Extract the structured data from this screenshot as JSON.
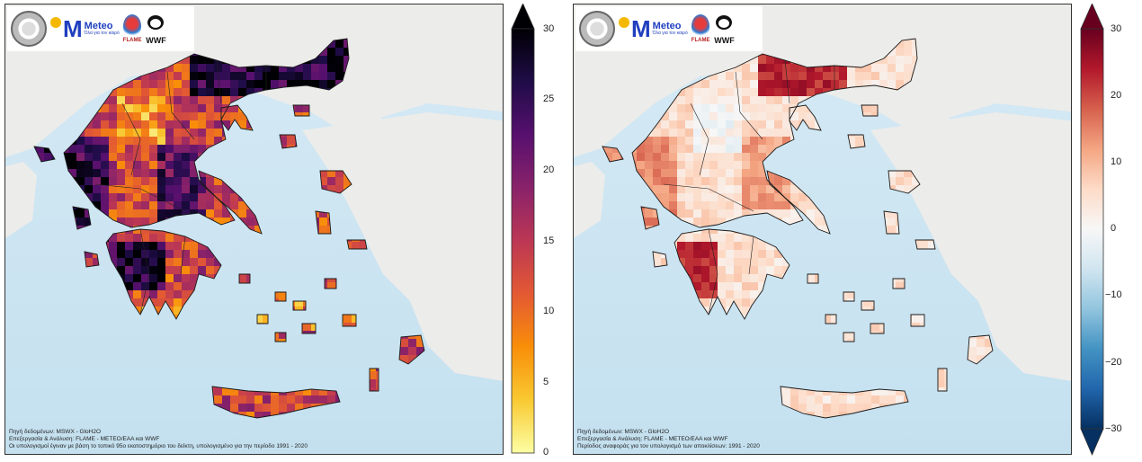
{
  "maps": [
    {
      "id": "left",
      "logos": {
        "meteo_name": "Meteo",
        "meteo_sub": "Όλα για τον καιρό",
        "flame_label": "FLAME",
        "wwf_label": "WWF"
      },
      "source_lines": [
        "Πηγή δεδομένων: MSWX - GloH2O",
        "Επεξεργασία & Ανάλυση: FLAME - METEO/EAA και WWF",
        "Οι υπολογισμοί έγιναν με βάση το τοπικό 95ο εκατοστημόριο του δείκτη, υπολογισμένο για την περίοδο 1991 - 2020"
      ],
      "colorbar": {
        "type": "sequential-inferno-reversed",
        "ticks": [
          "30",
          "25",
          "20",
          "15",
          "10",
          "5",
          "0"
        ],
        "min": 0,
        "max": 30,
        "extend": "max",
        "colors": [
          "#fcffa4",
          "#f9c932",
          "#f98e09",
          "#e35933",
          "#bc3754",
          "#89226a",
          "#57106e",
          "#1f0c48",
          "#000004"
        ]
      }
    },
    {
      "id": "right",
      "logos": {
        "meteo_name": "Meteo",
        "meteo_sub": "Όλα για τον καιρό",
        "flame_label": "FLAME",
        "wwf_label": "WWF"
      },
      "source_lines": [
        "Πηγή δεδομένων: MSWX - GloH2O",
        "Επεξεργασία & Ανάλυση: FLAME - METEO/EAA και WWF",
        "Περίοδος αναφοράς για τον υπολογισμό των αποκλίσεων: 1991 - 2020"
      ],
      "colorbar": {
        "type": "diverging-rdbu",
        "ticks": [
          "30",
          "20",
          "10",
          "0",
          "−10",
          "−20",
          "−30"
        ],
        "min": -30,
        "max": 30,
        "extend": "both",
        "colors": [
          "#053061",
          "#2166ac",
          "#4393c3",
          "#92c5de",
          "#d1e5f0",
          "#f7f7f7",
          "#fddbc7",
          "#f4a582",
          "#d6604d",
          "#b2182b",
          "#67001f"
        ]
      }
    }
  ]
}
